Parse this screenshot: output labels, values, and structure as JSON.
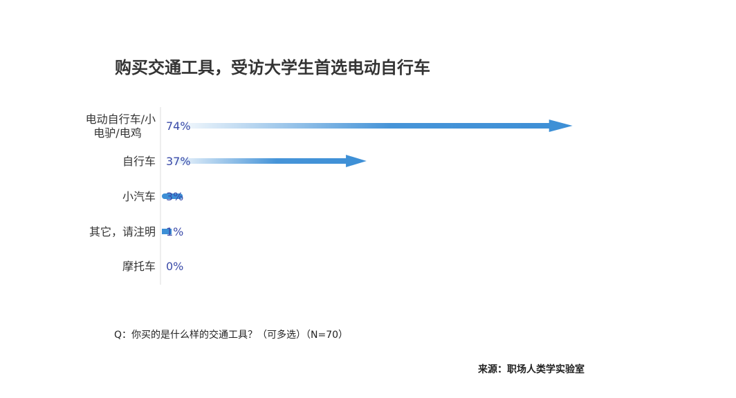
{
  "title": "购买交通工具，受访大学生首选电动自行车",
  "question": "Q：你买的是什么样的交通工具？（可多选）（N=70）",
  "source": "来源：职场人类学实验室",
  "colors": {
    "bar": "#3d8fd6",
    "label": "#3a4aa8"
  },
  "chart_data": {
    "type": "bar",
    "orientation": "horizontal",
    "categories": [
      [
        "电动自行车/小",
        "电驴/电鸡"
      ],
      [
        "自行车"
      ],
      [
        "小汽车"
      ],
      [
        "其它，请注明"
      ],
      [
        "摩托车"
      ]
    ],
    "values": [
      74,
      37,
      3,
      1,
      0
    ],
    "data_labels": [
      "74%",
      "37%",
      "3%",
      "1%",
      "0%"
    ],
    "unit": "%",
    "grid": false
  }
}
